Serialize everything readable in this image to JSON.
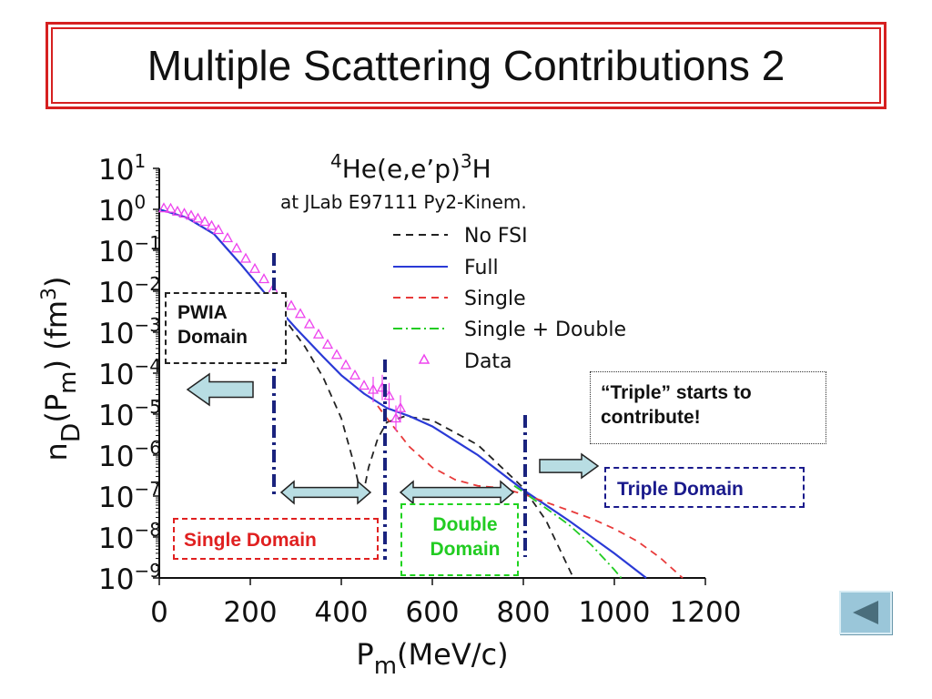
{
  "slide": {
    "title": "Multiple Scattering Contributions 2"
  },
  "chart_data": {
    "type": "line",
    "title": "4He(e,e’p)3H",
    "title_parts": {
      "pre_sup": "4",
      "main1": "He(e,e’p)",
      "sup": "3",
      "main2": "H"
    },
    "subtitle": "at JLab E97111 Py2-Kinem.",
    "xlabel": "Pm(MeV/c)",
    "xlabel_parts": {
      "base": "P",
      "sub": "m",
      "rest": "(MeV/c)"
    },
    "ylabel": "nD(Pm) (fm3)",
    "ylabel_parts": {
      "n": "n",
      "n_sub": "D",
      "mid": "(P",
      "mid_sub": "m",
      "unit": ") (fm",
      "unit_sup": "3",
      "end": ")"
    },
    "x_scale": "linear",
    "y_scale": "log",
    "xlim": [
      0,
      1200
    ],
    "ylim_exp": [
      -9,
      1
    ],
    "x_ticks": [
      0,
      200,
      400,
      600,
      800,
      1000,
      1200
    ],
    "x_tick_labels": [
      "0",
      "200",
      "400",
      "600",
      "800",
      "1000",
      "1200"
    ],
    "y_tick_exponents": [
      1,
      0,
      -1,
      -2,
      -3,
      -4,
      -5,
      -6,
      -7,
      -8,
      -9
    ],
    "y_tick_base": "10",
    "legend_position": "top-right",
    "series": [
      {
        "name": "No FSI",
        "color": "#222222",
        "style": "dashed",
        "x": [
          0,
          60,
          120,
          180,
          240,
          280,
          320,
          360,
          400,
          425,
          440,
          450,
          460,
          480,
          500,
          540,
          600,
          700,
          800,
          850,
          880,
          910
        ],
        "y_exp": [
          0,
          -0.2,
          -0.6,
          -1.35,
          -2.15,
          -2.75,
          -3.35,
          -4.1,
          -5.1,
          -6.1,
          -6.8,
          -6.85,
          -6.3,
          -5.6,
          -5.2,
          -5.05,
          -5.15,
          -5.75,
          -6.8,
          -7.6,
          -8.3,
          -9
        ]
      },
      {
        "name": "Full",
        "color": "#2a3ad6",
        "style": "solid",
        "x": [
          0,
          60,
          120,
          180,
          240,
          300,
          360,
          400,
          450,
          500,
          550,
          600,
          700,
          800,
          900,
          1000,
          1070
        ],
        "y_exp": [
          0,
          -0.2,
          -0.6,
          -1.35,
          -2.15,
          -2.9,
          -3.6,
          -4.05,
          -4.5,
          -4.85,
          -5.05,
          -5.3,
          -6.0,
          -6.85,
          -7.6,
          -8.4,
          -9
        ]
      },
      {
        "name": "Single",
        "color": "#e83a3a",
        "style": "dashed",
        "x": [
          480,
          500,
          550,
          600,
          650,
          700,
          750,
          800,
          850,
          900,
          950,
          1000,
          1050,
          1100,
          1150
        ],
        "y_exp": [
          -4.8,
          -5.1,
          -5.8,
          -6.3,
          -6.6,
          -6.75,
          -6.8,
          -6.95,
          -7.15,
          -7.35,
          -7.55,
          -7.8,
          -8.1,
          -8.5,
          -9
        ]
      },
      {
        "name": "Single + Double",
        "color": "#22cc22",
        "style": "dashdot",
        "x": [
          780,
          800,
          850,
          900,
          950,
          1000,
          1015
        ],
        "y_exp": [
          -6.75,
          -6.9,
          -7.3,
          -7.7,
          -8.2,
          -8.8,
          -9
        ]
      },
      {
        "name": "Data",
        "color": "#ee44ee",
        "style": "markers",
        "x": [
          10,
          25,
          40,
          55,
          70,
          85,
          100,
          115,
          130,
          150,
          170,
          190,
          210,
          230,
          250,
          270,
          290,
          310,
          330,
          350,
          370,
          390,
          410,
          430,
          450,
          470,
          490,
          505,
          520,
          530
        ],
        "y_exp": [
          0.03,
          0.02,
          -0.05,
          -0.1,
          -0.15,
          -0.22,
          -0.3,
          -0.4,
          -0.5,
          -0.7,
          -0.95,
          -1.2,
          -1.45,
          -1.7,
          -1.95,
          -2.15,
          -2.35,
          -2.55,
          -2.8,
          -3.05,
          -3.3,
          -3.55,
          -3.8,
          -4.05,
          -4.3,
          -4.4,
          -4.35,
          -4.55,
          -5.1,
          -4.85
        ]
      }
    ]
  },
  "markers": {
    "boundaries_x": [
      255,
      500,
      805
    ],
    "arrows": [
      "left",
      "both",
      "both",
      "right"
    ]
  },
  "annotations": {
    "pwia_line1": "PWIA",
    "pwia_line2": "Domain",
    "single_domain": "Single Domain",
    "double_line1": "Double",
    "double_line2": "Domain",
    "triple_domain": "Triple Domain",
    "triple_note_line1": "“Triple” starts to",
    "triple_note_line2": "contribute!"
  },
  "nav": {
    "back_icon": "triangle-left-icon",
    "colors": {
      "button": "#9ac6d9",
      "icon": "#4a6e7c"
    }
  },
  "colors": {
    "title_border": "#d62020",
    "domain_marker": "#1a237e",
    "arrow_fill": "#b8dde3"
  }
}
